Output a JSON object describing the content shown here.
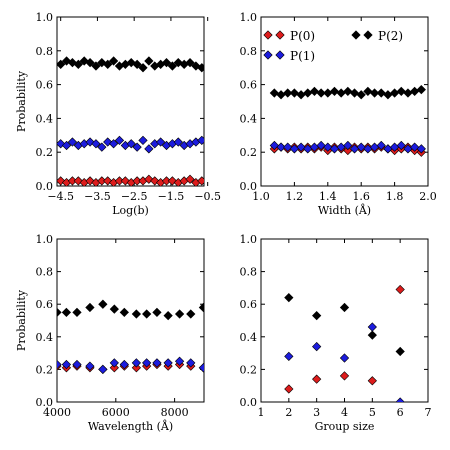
{
  "colors": {
    "P0": "#dd1c1c",
    "P1": "#1c1cdd",
    "P2": "#000000"
  },
  "legend": {
    "placement": "top-left of top-right panel",
    "entries": [
      {
        "key": "P0",
        "label": "P(0)"
      },
      {
        "key": "P1",
        "label": "P(1)"
      },
      {
        "key": "P2",
        "label": "P(2)"
      }
    ]
  },
  "chart_data": [
    {
      "type": "scatter",
      "xlabel": "Log(b)",
      "ylabel": "Probability",
      "xlim": [
        -4.6,
        -0.6
      ],
      "ylim": [
        0.0,
        1.0
      ],
      "xticks": [
        -4.5,
        -3.5,
        -2.5,
        -1.5,
        -0.5
      ],
      "xtick_labels": [
        "−4.5",
        "−3.5",
        "−2.5",
        "−1.5",
        "−0.5"
      ],
      "yticks": [
        0.0,
        0.2,
        0.4,
        0.6,
        0.8,
        1.0
      ],
      "ytick_labels": [
        "0.0",
        "0.2",
        "0.4",
        "0.6",
        "0.8",
        "1.0"
      ],
      "grid": false,
      "x": [
        -4.5,
        -4.34,
        -4.18,
        -4.02,
        -3.86,
        -3.7,
        -3.54,
        -3.38,
        -3.22,
        -3.06,
        -2.9,
        -2.74,
        -2.58,
        -2.42,
        -2.26,
        -2.1,
        -1.94,
        -1.78,
        -1.62,
        -1.46,
        -1.3,
        -1.14,
        -0.98,
        -0.82,
        -0.66
      ],
      "series": [
        {
          "key": "P0",
          "name": "P(0)",
          "values": [
            0.03,
            0.02,
            0.03,
            0.03,
            0.02,
            0.03,
            0.02,
            0.03,
            0.03,
            0.02,
            0.03,
            0.03,
            0.02,
            0.03,
            0.03,
            0.04,
            0.03,
            0.02,
            0.03,
            0.03,
            0.02,
            0.03,
            0.04,
            0.02,
            0.03
          ]
        },
        {
          "key": "P1",
          "name": "P(1)",
          "values": [
            0.25,
            0.24,
            0.26,
            0.24,
            0.25,
            0.26,
            0.25,
            0.23,
            0.26,
            0.25,
            0.27,
            0.24,
            0.25,
            0.23,
            0.27,
            0.22,
            0.25,
            0.26,
            0.24,
            0.25,
            0.26,
            0.24,
            0.25,
            0.26,
            0.27
          ]
        },
        {
          "key": "P2",
          "name": "P(2)",
          "values": [
            0.72,
            0.74,
            0.73,
            0.72,
            0.74,
            0.73,
            0.71,
            0.73,
            0.72,
            0.74,
            0.71,
            0.72,
            0.73,
            0.72,
            0.7,
            0.74,
            0.71,
            0.72,
            0.73,
            0.71,
            0.73,
            0.72,
            0.73,
            0.71,
            0.7
          ]
        }
      ]
    },
    {
      "type": "scatter",
      "xlabel": "Width (Å)",
      "ylabel": "",
      "xlim": [
        1.0,
        2.0
      ],
      "ylim": [
        0.0,
        1.0
      ],
      "xticks": [
        1.0,
        1.2,
        1.4,
        1.6,
        1.8,
        2.0
      ],
      "xtick_labels": [
        "1.0",
        "1.2",
        "1.4",
        "1.6",
        "1.8",
        "2.0"
      ],
      "yticks": [
        0.0,
        0.2,
        0.4,
        0.6,
        0.8,
        1.0
      ],
      "ytick_labels": [
        "0.0",
        "0.2",
        "0.4",
        "0.6",
        "0.8",
        "1.0"
      ],
      "grid": false,
      "x": [
        1.08,
        1.12,
        1.16,
        1.2,
        1.24,
        1.28,
        1.32,
        1.36,
        1.4,
        1.44,
        1.48,
        1.52,
        1.56,
        1.6,
        1.64,
        1.68,
        1.72,
        1.76,
        1.8,
        1.84,
        1.88,
        1.92,
        1.96
      ],
      "series": [
        {
          "key": "P0",
          "name": "P(0)",
          "values": [
            0.22,
            0.23,
            0.22,
            0.23,
            0.22,
            0.23,
            0.22,
            0.23,
            0.21,
            0.23,
            0.22,
            0.21,
            0.23,
            0.22,
            0.23,
            0.22,
            0.23,
            0.22,
            0.21,
            0.22,
            0.23,
            0.21,
            0.2
          ]
        },
        {
          "key": "P1",
          "name": "P(1)",
          "values": [
            0.24,
            0.23,
            0.23,
            0.22,
            0.23,
            0.22,
            0.23,
            0.24,
            0.23,
            0.22,
            0.23,
            0.24,
            0.22,
            0.23,
            0.22,
            0.23,
            0.24,
            0.22,
            0.23,
            0.24,
            0.22,
            0.23,
            0.22
          ]
        },
        {
          "key": "P2",
          "name": "P(2)",
          "values": [
            0.55,
            0.54,
            0.55,
            0.55,
            0.54,
            0.55,
            0.56,
            0.55,
            0.55,
            0.56,
            0.55,
            0.56,
            0.55,
            0.54,
            0.56,
            0.55,
            0.55,
            0.54,
            0.55,
            0.56,
            0.55,
            0.56,
            0.57
          ]
        }
      ]
    },
    {
      "type": "scatter",
      "xlabel": "Wavelength (Å)",
      "ylabel": "Probability",
      "xlim": [
        4000,
        9000
      ],
      "ylim": [
        0.0,
        1.0
      ],
      "xticks": [
        4000,
        6000,
        8000
      ],
      "xtick_labels": [
        "4000",
        "6000",
        "8000"
      ],
      "yticks": [
        0.0,
        0.2,
        0.4,
        0.6,
        0.8,
        1.0
      ],
      "ytick_labels": [
        "0.0",
        "0.2",
        "0.4",
        "0.6",
        "0.8",
        "1.0"
      ],
      "grid": false,
      "x": [
        4000,
        4320,
        4680,
        5120,
        5560,
        5950,
        6290,
        6700,
        7050,
        7400,
        7780,
        8170,
        8550,
        8980
      ],
      "series": [
        {
          "key": "P0",
          "name": "P(0)",
          "values": [
            0.22,
            0.21,
            0.22,
            0.21,
            0.2,
            0.21,
            0.22,
            0.21,
            0.22,
            0.23,
            0.22,
            0.23,
            0.22,
            0.21
          ]
        },
        {
          "key": "P1",
          "name": "P(1)",
          "values": [
            0.23,
            0.23,
            0.23,
            0.22,
            0.2,
            0.24,
            0.23,
            0.24,
            0.24,
            0.24,
            0.24,
            0.25,
            0.24,
            0.21
          ]
        },
        {
          "key": "P2",
          "name": "P(2)",
          "values": [
            0.55,
            0.55,
            0.55,
            0.58,
            0.6,
            0.57,
            0.55,
            0.54,
            0.54,
            0.55,
            0.53,
            0.54,
            0.54,
            0.58
          ]
        }
      ]
    },
    {
      "type": "scatter",
      "xlabel": "Group size",
      "ylabel": "",
      "xlim": [
        1,
        7
      ],
      "ylim": [
        0.0,
        1.0
      ],
      "xticks": [
        1,
        2,
        3,
        4,
        5,
        6,
        7
      ],
      "xtick_labels": [
        "1",
        "2",
        "3",
        "4",
        "5",
        "6",
        "7"
      ],
      "yticks": [
        0.0,
        0.2,
        0.4,
        0.6,
        0.8,
        1.0
      ],
      "ytick_labels": [
        "0.0",
        "0.2",
        "0.4",
        "0.6",
        "0.8",
        "1.0"
      ],
      "grid": false,
      "x": [
        2,
        3,
        4,
        5,
        6
      ],
      "series": [
        {
          "key": "P0",
          "name": "P(0)",
          "values": [
            0.08,
            0.14,
            0.16,
            0.13,
            0.69
          ]
        },
        {
          "key": "P1",
          "name": "P(1)",
          "values": [
            0.28,
            0.34,
            0.27,
            0.46,
            0.0
          ]
        },
        {
          "key": "P2",
          "name": "P(2)",
          "values": [
            0.64,
            0.53,
            0.58,
            0.41,
            0.31
          ]
        }
      ]
    }
  ]
}
